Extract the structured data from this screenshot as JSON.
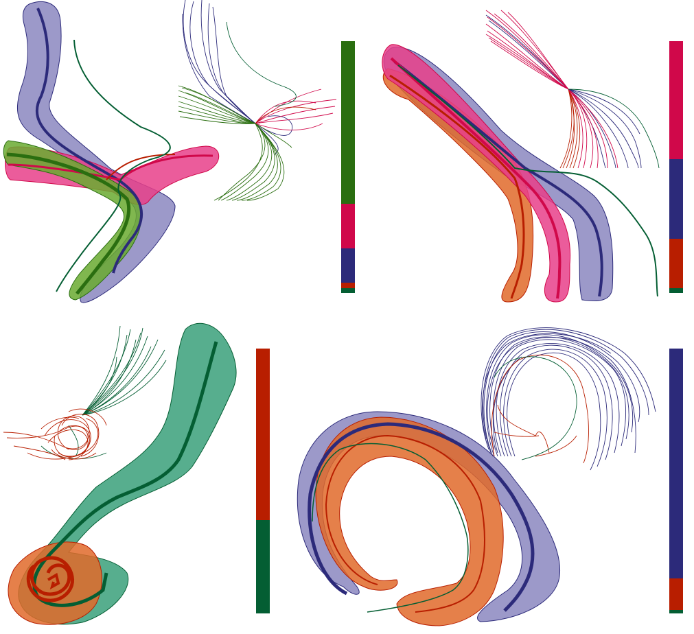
{
  "colors": {
    "green": "#2a6e10",
    "crimson": "#d0084a",
    "navy": "#2c2a7a",
    "red": "#b81e00",
    "darkgreen": "#045e33",
    "lavender": "#8b87c0",
    "pink": "#e8408a",
    "lightgreen": "#6aaa30",
    "orange": "#e06a2a",
    "teal": "#3aa07a"
  },
  "panels": [
    {
      "id": "top-left",
      "proportions": [
        {
          "cluster": "green",
          "fraction": 0.647
        },
        {
          "cluster": "crimson",
          "fraction": 0.175
        },
        {
          "cluster": "navy",
          "fraction": 0.137
        },
        {
          "cluster": "red",
          "fraction": 0.022
        },
        {
          "cluster": "darkgreen",
          "fraction": 0.019
        }
      ]
    },
    {
      "id": "top-right",
      "proportions": [
        {
          "cluster": "crimson",
          "fraction": 0.47
        },
        {
          "cluster": "navy",
          "fraction": 0.315
        },
        {
          "cluster": "red",
          "fraction": 0.196
        },
        {
          "cluster": "darkgreen",
          "fraction": 0.019
        }
      ]
    },
    {
      "id": "bottom-left",
      "proportions": [
        {
          "cluster": "red",
          "fraction": 0.648
        },
        {
          "cluster": "darkgreen",
          "fraction": 0.352
        }
      ]
    },
    {
      "id": "bottom-right",
      "proportions": [
        {
          "cluster": "navy",
          "fraction": 0.867
        },
        {
          "cluster": "red",
          "fraction": 0.12
        },
        {
          "cluster": "darkgreen",
          "fraction": 0.013
        }
      ]
    }
  ]
}
